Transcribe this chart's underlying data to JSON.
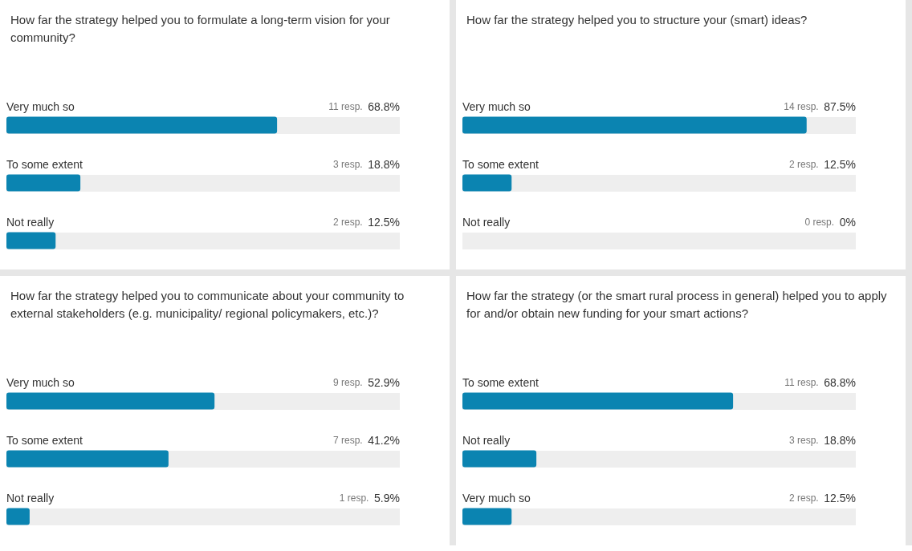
{
  "chart_data": [
    {
      "type": "bar",
      "orientation": "horizontal",
      "title": "How far the strategy helped you to formulate a long-term vision for your community?",
      "categories": [
        "Very much so",
        "To some extent",
        "Not really"
      ],
      "values": [
        68.8,
        18.8,
        12.5
      ],
      "value_labels": [
        "68.8%",
        "18.8%",
        "12.5%"
      ],
      "annotations": [
        "11 resp.",
        "3 resp.",
        "2 resp."
      ],
      "color": "#0b84b1",
      "xlim": [
        0,
        100
      ],
      "tick_labels": "y"
    },
    {
      "type": "bar",
      "orientation": "horizontal",
      "title": "How far the strategy helped you to structure your (smart) ideas?",
      "categories": [
        "Very much so",
        "To some extent",
        "Not really"
      ],
      "values": [
        87.5,
        12.5,
        0
      ],
      "value_labels": [
        "87.5%",
        "12.5%",
        "0%"
      ],
      "annotations": [
        "14 resp.",
        "2 resp.",
        "0 resp."
      ],
      "color": "#0b84b1",
      "xlim": [
        0,
        100
      ],
      "tick_labels": "y"
    },
    {
      "type": "bar",
      "orientation": "horizontal",
      "title": "How far the strategy helped you to communicate about your community to external stakeholders (e.g. municipality/ regional policymakers, etc.)?",
      "categories": [
        "Very much so",
        "To some extent",
        "Not really"
      ],
      "values": [
        52.9,
        41.2,
        5.9
      ],
      "value_labels": [
        "52.9%",
        "41.2%",
        "5.9%"
      ],
      "annotations": [
        "9 resp.",
        "7 resp.",
        "1 resp."
      ],
      "color": "#0b84b1",
      "xlim": [
        0,
        100
      ],
      "tick_labels": "y"
    },
    {
      "type": "bar",
      "orientation": "horizontal",
      "title": "How far the strategy (or the smart rural process in general) helped you to apply for and/or obtain new funding for your smart actions?",
      "categories": [
        "To some extent",
        "Not really",
        "Very much so"
      ],
      "values": [
        68.8,
        18.8,
        12.5
      ],
      "value_labels": [
        "68.8%",
        "18.8%",
        "12.5%"
      ],
      "annotations": [
        "11 resp.",
        "3 resp.",
        "2 resp."
      ],
      "color": "#0b84b1",
      "xlim": [
        0,
        100
      ],
      "tick_labels": "y"
    }
  ]
}
